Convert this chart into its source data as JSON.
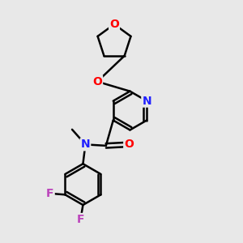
{
  "bg_color": "#e8e8e8",
  "bond_color": "#000000",
  "bond_width": 1.8,
  "atom_colors": {
    "N": "#2020ff",
    "O": "#ff0000",
    "F": "#bb44bb",
    "C": "#000000"
  },
  "font_size_atom": 10
}
